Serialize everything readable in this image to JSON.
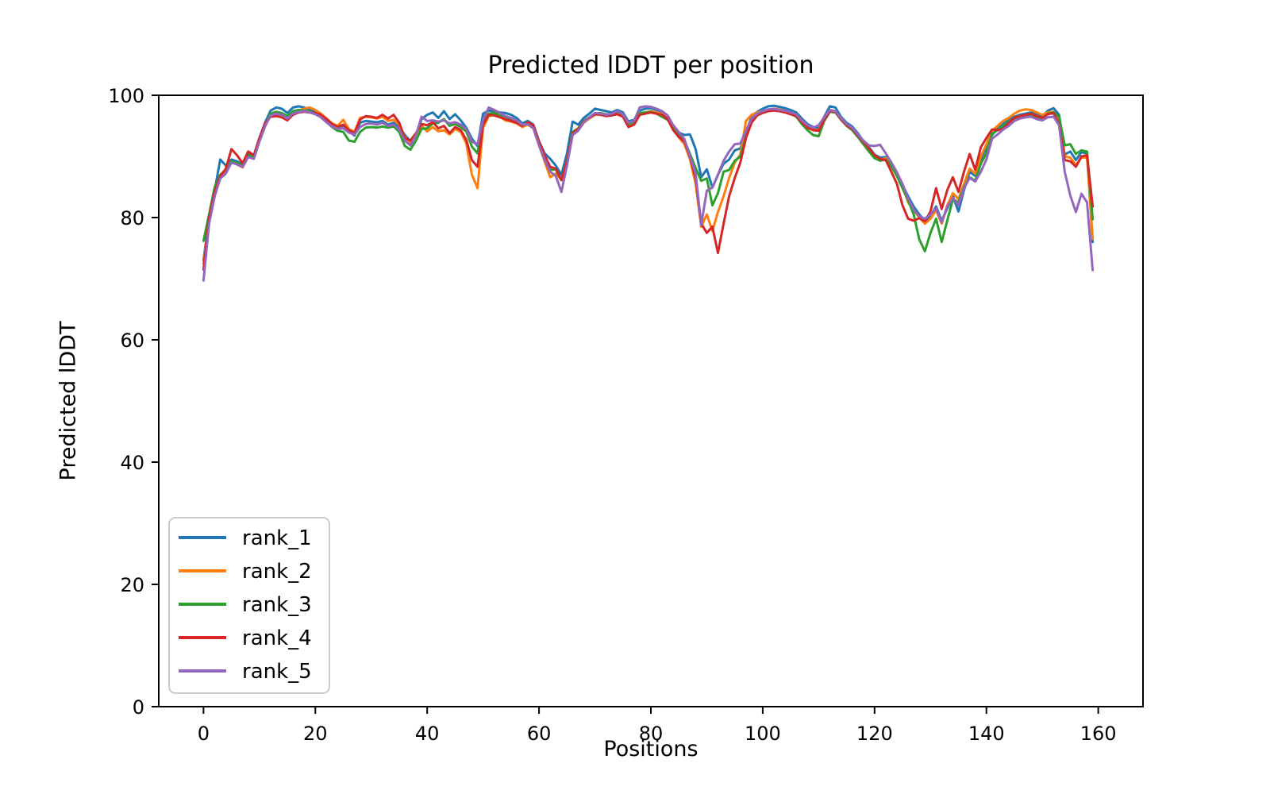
{
  "figure": {
    "background": "#ffffff",
    "spine_color": "#000000",
    "legend_border_color": "#cccccc"
  },
  "chart_data": {
    "type": "line",
    "title": "Predicted lDDT per position",
    "xlabel": "Positions",
    "ylabel": "Predicted lDDT",
    "xlim": [
      -8,
      168
    ],
    "ylim": [
      0,
      100
    ],
    "x_ticks": [
      0,
      20,
      40,
      60,
      80,
      100,
      120,
      140,
      160
    ],
    "y_ticks": [
      0,
      20,
      40,
      60,
      80,
      100
    ],
    "grid": false,
    "legend_position": "lower left",
    "x": [
      0,
      1,
      2,
      3,
      4,
      5,
      6,
      7,
      8,
      9,
      10,
      11,
      12,
      13,
      14,
      15,
      16,
      17,
      18,
      19,
      20,
      21,
      22,
      23,
      24,
      25,
      26,
      27,
      28,
      29,
      30,
      31,
      32,
      33,
      34,
      35,
      36,
      37,
      38,
      39,
      40,
      41,
      42,
      43,
      44,
      45,
      46,
      47,
      48,
      49,
      50,
      51,
      52,
      53,
      54,
      55,
      56,
      57,
      58,
      59,
      60,
      61,
      62,
      63,
      64,
      65,
      66,
      67,
      68,
      69,
      70,
      71,
      72,
      73,
      74,
      75,
      76,
      77,
      78,
      79,
      80,
      81,
      82,
      83,
      84,
      85,
      86,
      87,
      88,
      89,
      90,
      91,
      92,
      93,
      94,
      95,
      96,
      97,
      98,
      99,
      100,
      101,
      102,
      103,
      104,
      105,
      106,
      107,
      108,
      109,
      110,
      111,
      112,
      113,
      114,
      115,
      116,
      117,
      118,
      119,
      120,
      121,
      122,
      123,
      124,
      125,
      126,
      127,
      128,
      129,
      130,
      131,
      132,
      133,
      134,
      135,
      136,
      137,
      138,
      139,
      140,
      141,
      142,
      143,
      144,
      145,
      146,
      147,
      148,
      149,
      150,
      151,
      152,
      153,
      154,
      155,
      156,
      157,
      158,
      159
    ],
    "series": [
      {
        "name": "rank_1",
        "color": "#1f77b4",
        "values": [
          73,
          80,
          84.5,
          89.5,
          88.5,
          89.5,
          89.2,
          88.7,
          90.5,
          90.1,
          93,
          95.5,
          97.5,
          98,
          97.8,
          97.1,
          98,
          98.2,
          98,
          97.6,
          97.3,
          96.8,
          96,
          95.2,
          94.8,
          95,
          94.2,
          93.4,
          95.5,
          95.8,
          95.7,
          95.6,
          95.8,
          95.2,
          95.5,
          94.8,
          93.5,
          92.5,
          93.6,
          96.1,
          96.8,
          97.2,
          96.3,
          97.4,
          96.1,
          96.9,
          95.9,
          94.7,
          92.9,
          91.7,
          97,
          97.5,
          97.4,
          97.2,
          97.1,
          96.8,
          96.3,
          95.4,
          95.8,
          95.2,
          92.5,
          90.5,
          89.6,
          88.5,
          87,
          90.5,
          95.7,
          95.2,
          96.3,
          97,
          97.8,
          97.6,
          97.4,
          97.2,
          97.6,
          97.2,
          95.7,
          96,
          97.5,
          97.8,
          97.9,
          97.6,
          97.3,
          96.5,
          95,
          93.9,
          93.5,
          93.6,
          91.2,
          86.6,
          87.9,
          84.9,
          87,
          88.8,
          89.5,
          91,
          91.3,
          93.8,
          96.5,
          97.3,
          97.8,
          98.2,
          98.3,
          98.1,
          97.9,
          97.6,
          97.2,
          96.2,
          95.3,
          94.8,
          94.6,
          96.5,
          98.2,
          98,
          96.5,
          95.5,
          94.9,
          93.8,
          92.5,
          91.5,
          90.3,
          89.8,
          89.9,
          88.8,
          87.2,
          85.3,
          83.5,
          81.8,
          80.5,
          79.5,
          80.2,
          81.8,
          79.5,
          81.5,
          83.5,
          81,
          84.5,
          87.5,
          86.8,
          89.5,
          91.5,
          93.5,
          94.5,
          95.3,
          96,
          96.5,
          96.8,
          97,
          97.2,
          96.8,
          96.5,
          97.5,
          97.9,
          96.8,
          90.3,
          90.8,
          89.4,
          90.7,
          90.5,
          76
        ]
      },
      {
        "name": "rank_2",
        "color": "#ff7f0e",
        "values": [
          72.5,
          79.5,
          84,
          86.5,
          87.5,
          89,
          88.7,
          88.2,
          90,
          89.7,
          92.5,
          95,
          96.8,
          97.2,
          97,
          96.5,
          97.3,
          97.5,
          97.8,
          98,
          97.6,
          97,
          96.2,
          95.4,
          95,
          96,
          94.5,
          94,
          96.3,
          96.5,
          96.4,
          96.2,
          96.5,
          95.8,
          96,
          95.2,
          93.2,
          92.3,
          93.2,
          95,
          94.1,
          94.8,
          94.1,
          94.3,
          93.6,
          94.5,
          94,
          92.1,
          87,
          84.8,
          94.7,
          96.6,
          96.8,
          96.5,
          95.9,
          95.7,
          95.4,
          94.8,
          95.2,
          94.6,
          91.8,
          89.2,
          86.6,
          87.2,
          86.2,
          89,
          93.5,
          94.3,
          95.5,
          96.2,
          96.8,
          96.9,
          96.7,
          96.9,
          97.1,
          96.7,
          95.2,
          95.5,
          97,
          97.2,
          97.4,
          97.2,
          96.9,
          96.2,
          94.5,
          93.1,
          92,
          89.5,
          85.5,
          78.5,
          80.5,
          77.8,
          80.9,
          83.5,
          86.5,
          89,
          90.3,
          95.8,
          96.8,
          97.2,
          97.4,
          97.6,
          97.8,
          97.7,
          97.5,
          97.2,
          96.8,
          95.8,
          94.9,
          94.4,
          94.3,
          96.2,
          97.5,
          97.4,
          96.2,
          95.2,
          94.6,
          93.5,
          92.3,
          91.2,
          90,
          89.5,
          89.7,
          88.6,
          87,
          85.1,
          82.5,
          81.2,
          80,
          79,
          79.8,
          81.2,
          79,
          82,
          84,
          83,
          85.5,
          88,
          87.2,
          90,
          92,
          94.2,
          95,
          95.8,
          96.3,
          97,
          97.5,
          97.7,
          97.6,
          97.2,
          96.8,
          97.2,
          97.3,
          96.2,
          90,
          89.8,
          88.6,
          89.8,
          89.8,
          76.5
        ]
      },
      {
        "name": "rank_3",
        "color": "#2ca02c",
        "values": [
          76.2,
          80.5,
          85,
          87,
          87.8,
          89.2,
          89,
          88.5,
          90.2,
          89.9,
          92.7,
          95.2,
          97,
          97.3,
          97.1,
          96.6,
          97.4,
          97.6,
          97.5,
          97.4,
          97,
          96.4,
          95.6,
          94.8,
          94.2,
          94,
          92.6,
          92.4,
          94,
          94.7,
          94.8,
          94.7,
          94.9,
          94.7,
          94.9,
          94,
          91.7,
          91.1,
          92.6,
          94.5,
          94.6,
          95.4,
          95.5,
          96.1,
          95,
          95.3,
          94.8,
          94.1,
          91.6,
          90.5,
          95.8,
          97,
          97.1,
          96.8,
          96.5,
          96.2,
          95.8,
          95.1,
          95.4,
          94.8,
          92,
          89.8,
          87.8,
          87.9,
          86.1,
          89.5,
          94,
          94.6,
          95.8,
          96.4,
          97,
          97.1,
          96.9,
          96.8,
          97,
          96.6,
          95.3,
          95.6,
          97.1,
          97.2,
          97.3,
          97,
          96.5,
          96,
          94.7,
          93.4,
          92.6,
          90.4,
          88.1,
          86,
          86.4,
          82,
          84,
          87.5,
          87.8,
          89.3,
          90,
          93.2,
          95.8,
          96.8,
          97.2,
          97.5,
          97.6,
          97.5,
          97.3,
          97,
          96.5,
          95.3,
          94.3,
          93.5,
          93.3,
          95.8,
          97.3,
          97.2,
          96,
          95,
          94.3,
          93.2,
          92,
          90.8,
          89.7,
          89.3,
          89.5,
          88.4,
          86.8,
          84.8,
          82.8,
          80.5,
          76.4,
          74.5,
          77.5,
          79.8,
          76,
          79.5,
          83,
          82.5,
          85,
          86.6,
          86,
          88.8,
          90.5,
          93.7,
          94.3,
          95,
          95.7,
          96.2,
          96.5,
          96.7,
          96.8,
          96.5,
          96.2,
          97,
          97.2,
          96.5,
          91.8,
          92,
          90.4,
          91,
          90.8,
          79.7
        ]
      },
      {
        "name": "rank_4",
        "color": "#d62728",
        "values": [
          71.5,
          80,
          84.3,
          86.8,
          88,
          91.2,
          90.2,
          88.9,
          90.8,
          90.2,
          93,
          95.4,
          96.5,
          96.6,
          96.4,
          95.9,
          96.8,
          97.2,
          97.3,
          97.2,
          97.1,
          96.8,
          96.1,
          95.3,
          94.8,
          95.2,
          94.3,
          93.8,
          96,
          96.6,
          96.5,
          96.3,
          96.8,
          96.2,
          96.8,
          95.5,
          93,
          92.6,
          93.8,
          95.3,
          95.1,
          95.6,
          94.6,
          95,
          93.8,
          94.8,
          94.3,
          92.7,
          89.4,
          88.3,
          95.2,
          96.8,
          96.7,
          96.4,
          96.1,
          95.8,
          95.5,
          95,
          95.6,
          95.1,
          92.4,
          90.2,
          88.3,
          88,
          86.1,
          89.3,
          93.8,
          94.5,
          95.7,
          96.3,
          96.9,
          96.8,
          96.6,
          96.7,
          96.9,
          96.5,
          94.8,
          95.2,
          96.8,
          97,
          97.2,
          97,
          96.8,
          96.1,
          94.3,
          93.2,
          92.4,
          89.9,
          86.4,
          79,
          77.5,
          78.5,
          74.2,
          79,
          83.5,
          86.5,
          89,
          93,
          95.5,
          96.7,
          97.1,
          97.4,
          97.5,
          97.4,
          97.2,
          96.9,
          96.6,
          95.6,
          94.7,
          94.3,
          94.2,
          96,
          97.4,
          97.3,
          96.1,
          95.1,
          94.5,
          93.4,
          92.4,
          91.3,
          90.2,
          89.6,
          89.4,
          87.5,
          85.5,
          82,
          79.8,
          79.5,
          79.9,
          79.4,
          81,
          84.8,
          81.4,
          84.5,
          86.6,
          84.2,
          87.5,
          90.4,
          87.8,
          91.5,
          93,
          94.4,
          94.3,
          94.5,
          95.5,
          96.3,
          96.6,
          96.8,
          97,
          96.6,
          96.3,
          96.9,
          97.1,
          95.3,
          89.4,
          89.2,
          88.3,
          90,
          90.2,
          81.8
        ]
      },
      {
        "name": "rank_5",
        "color": "#9467bd",
        "values": [
          69.7,
          79,
          83.5,
          86.4,
          87.2,
          89,
          88.7,
          88.3,
          89.9,
          89.6,
          92.4,
          94.9,
          96.7,
          97,
          96.8,
          96.2,
          97,
          97.3,
          97.4,
          97.2,
          96.9,
          96.4,
          95.6,
          94.9,
          94.5,
          94.6,
          93.9,
          93.6,
          94.8,
          95.3,
          95.4,
          95.2,
          95.5,
          95,
          95.2,
          94.4,
          92.6,
          91.8,
          93.5,
          96.5,
          95.8,
          95.9,
          95.7,
          95.9,
          95.4,
          95.6,
          95.2,
          94.5,
          92.4,
          92,
          96,
          98,
          97.6,
          97.1,
          96.6,
          96.3,
          95.9,
          95.2,
          95.3,
          94.6,
          91.8,
          89.5,
          87.5,
          86.8,
          84.2,
          88.5,
          93.5,
          94.2,
          95.6,
          96.4,
          97.1,
          97,
          96.8,
          97,
          97.4,
          96.9,
          95.5,
          95.8,
          98,
          98.2,
          98.1,
          97.8,
          97.4,
          96.7,
          95.1,
          94,
          92.8,
          90,
          87.2,
          78.8,
          84.4,
          84.9,
          87,
          89.3,
          90.8,
          92,
          92.1,
          94.2,
          96.2,
          97,
          97.4,
          97.7,
          97.8,
          97.6,
          97.5,
          97.2,
          96.9,
          95.9,
          95.1,
          94.7,
          95.1,
          96.4,
          97.6,
          97.4,
          96.3,
          95.3,
          94.7,
          93.6,
          92.6,
          91.8,
          91.7,
          91.9,
          90.5,
          89,
          87.4,
          85.5,
          83.2,
          81.3,
          80.2,
          79.8,
          80.5,
          81.5,
          79.2,
          81.8,
          83.2,
          82,
          84.8,
          86.5,
          85.9,
          87.5,
          89.5,
          92.9,
          93.6,
          94.4,
          95,
          95.8,
          96.2,
          96.4,
          96.5,
          96.1,
          95.9,
          96.4,
          96.5,
          95.1,
          87.5,
          83.6,
          80.9,
          83.9,
          82.5,
          71.4
        ]
      }
    ]
  }
}
